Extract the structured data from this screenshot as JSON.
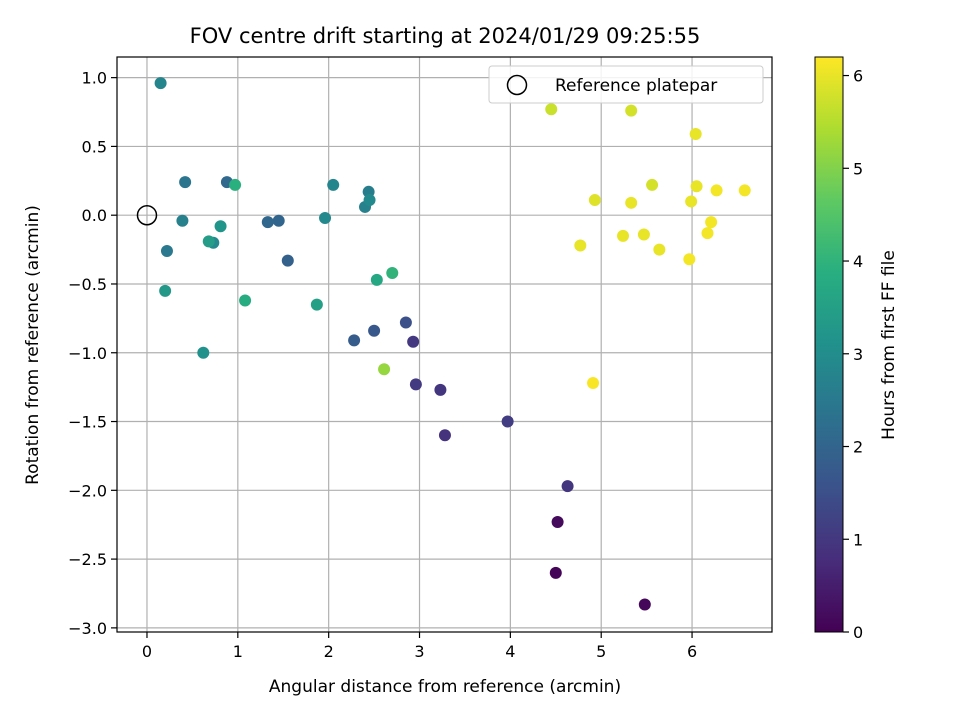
{
  "chart_data": {
    "type": "scatter",
    "title": "FOV centre drift starting at 2024/01/29 09:25:55",
    "xlabel": "Angular distance from reference (arcmin)",
    "ylabel": "Rotation from reference (arcmin)",
    "xlim": [
      -0.33,
      6.88
    ],
    "ylim": [
      -3.03,
      1.15
    ],
    "xticks": [
      0,
      1,
      2,
      3,
      4,
      5,
      6
    ],
    "xtick_labels": [
      "0",
      "1",
      "2",
      "3",
      "4",
      "5",
      "6"
    ],
    "yticks": [
      1.0,
      0.5,
      0.0,
      -0.5,
      -1.0,
      -1.5,
      -2.0,
      -2.5,
      -3.0
    ],
    "ytick_labels": [
      "1.0",
      "0.5",
      "0.0",
      "−0.5",
      "−1.0",
      "−1.5",
      "−2.0",
      "−2.5",
      "−3.0"
    ],
    "grid": true,
    "legend": {
      "placement": "top-right",
      "entries": [
        "Reference platepar"
      ]
    },
    "reference_point": {
      "x": 0.0,
      "y": 0.0
    },
    "colormap": "viridis",
    "colorbar": {
      "label": "Hours from first FF file",
      "range": [
        0,
        6.2
      ],
      "ticks": [
        0,
        1,
        2,
        3,
        4,
        5,
        6
      ],
      "tick_labels": [
        "0",
        "1",
        "2",
        "3",
        "4",
        "5",
        "6"
      ]
    },
    "points": [
      {
        "x": 4.5,
        "y": -2.6,
        "c": 0.05
      },
      {
        "x": 4.52,
        "y": -2.23,
        "c": 0.15
      },
      {
        "x": 5.48,
        "y": -2.83,
        "c": 0.1
      },
      {
        "x": 4.63,
        "y": -1.97,
        "c": 0.95
      },
      {
        "x": 3.97,
        "y": -1.5,
        "c": 1.1
      },
      {
        "x": 3.28,
        "y": -1.6,
        "c": 0.9
      },
      {
        "x": 3.23,
        "y": -1.27,
        "c": 0.95
      },
      {
        "x": 2.96,
        "y": -1.23,
        "c": 1.05
      },
      {
        "x": 2.93,
        "y": -0.92,
        "c": 1.0
      },
      {
        "x": 2.85,
        "y": -0.78,
        "c": 1.5
      },
      {
        "x": 2.5,
        "y": -0.84,
        "c": 1.7
      },
      {
        "x": 2.28,
        "y": -0.91,
        "c": 1.8
      },
      {
        "x": 1.55,
        "y": -0.33,
        "c": 1.9
      },
      {
        "x": 1.45,
        "y": -0.04,
        "c": 2.0
      },
      {
        "x": 1.33,
        "y": -0.05,
        "c": 2.05
      },
      {
        "x": 0.88,
        "y": 0.24,
        "c": 2.1
      },
      {
        "x": 0.42,
        "y": 0.24,
        "c": 2.4
      },
      {
        "x": 0.15,
        "y": 0.96,
        "c": 2.8
      },
      {
        "x": 0.22,
        "y": -0.26,
        "c": 2.5
      },
      {
        "x": 0.39,
        "y": -0.04,
        "c": 2.7
      },
      {
        "x": 0.73,
        "y": -0.2,
        "c": 2.9
      },
      {
        "x": 0.68,
        "y": -0.19,
        "c": 3.4
      },
      {
        "x": 0.81,
        "y": -0.08,
        "c": 3.2
      },
      {
        "x": 0.62,
        "y": -1.0,
        "c": 3.1
      },
      {
        "x": 0.2,
        "y": -0.55,
        "c": 3.3
      },
      {
        "x": 0.97,
        "y": 0.22,
        "c": 3.9
      },
      {
        "x": 1.08,
        "y": -0.62,
        "c": 3.8
      },
      {
        "x": 1.87,
        "y": -0.65,
        "c": 3.5
      },
      {
        "x": 1.96,
        "y": -0.02,
        "c": 2.9
      },
      {
        "x": 2.05,
        "y": 0.22,
        "c": 2.8
      },
      {
        "x": 2.4,
        "y": 0.06,
        "c": 2.7
      },
      {
        "x": 2.44,
        "y": 0.17,
        "c": 2.6
      },
      {
        "x": 2.45,
        "y": 0.11,
        "c": 2.9
      },
      {
        "x": 2.53,
        "y": -0.47,
        "c": 3.7
      },
      {
        "x": 2.7,
        "y": -0.42,
        "c": 4.0
      },
      {
        "x": 2.61,
        "y": -1.12,
        "c": 5.2
      },
      {
        "x": 4.45,
        "y": 0.77,
        "c": 5.7
      },
      {
        "x": 5.33,
        "y": 0.76,
        "c": 5.8
      },
      {
        "x": 6.04,
        "y": 0.59,
        "c": 6.0
      },
      {
        "x": 5.56,
        "y": 0.22,
        "c": 5.8
      },
      {
        "x": 6.05,
        "y": 0.21,
        "c": 6.0
      },
      {
        "x": 6.27,
        "y": 0.18,
        "c": 6.1
      },
      {
        "x": 6.58,
        "y": 0.18,
        "c": 6.1
      },
      {
        "x": 4.93,
        "y": 0.11,
        "c": 5.9
      },
      {
        "x": 5.33,
        "y": 0.09,
        "c": 6.0
      },
      {
        "x": 5.99,
        "y": 0.1,
        "c": 6.0
      },
      {
        "x": 6.21,
        "y": -0.05,
        "c": 6.1
      },
      {
        "x": 6.17,
        "y": -0.13,
        "c": 6.1
      },
      {
        "x": 4.77,
        "y": -0.22,
        "c": 6.0
      },
      {
        "x": 5.24,
        "y": -0.15,
        "c": 6.0
      },
      {
        "x": 5.47,
        "y": -0.14,
        "c": 6.0
      },
      {
        "x": 5.64,
        "y": -0.25,
        "c": 6.0
      },
      {
        "x": 5.97,
        "y": -0.32,
        "c": 6.1
      },
      {
        "x": 4.91,
        "y": -1.22,
        "c": 6.15
      }
    ]
  }
}
